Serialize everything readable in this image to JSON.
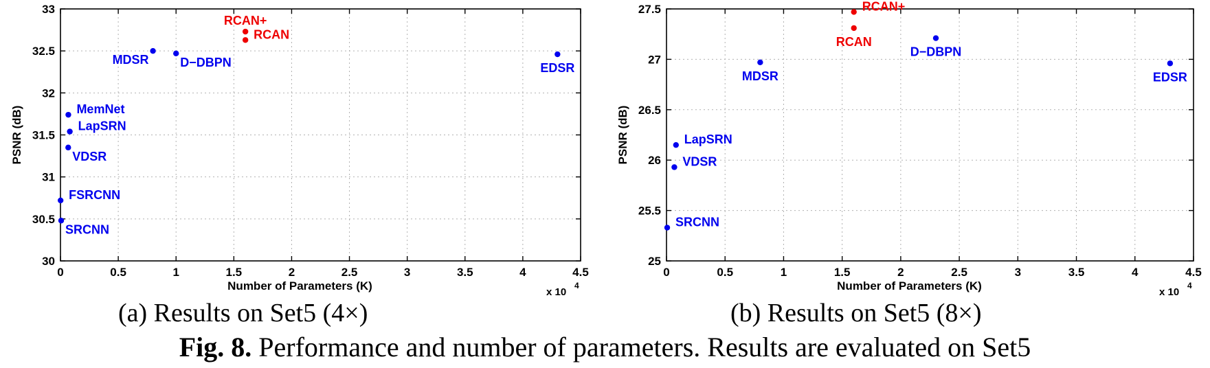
{
  "chart_data": [
    {
      "type": "scatter",
      "title": "",
      "subcaption": "(a) Results on Set5 (4×)",
      "xlabel": "Number of Parameters (K)",
      "ylabel": "PSNR (dB)",
      "x_multiplier_label": "x 10",
      "x_multiplier_exp": "4",
      "xlim": [
        0,
        4.5
      ],
      "ylim": [
        30,
        33
      ],
      "xticks": [
        0,
        0.5,
        1,
        1.5,
        2,
        2.5,
        3,
        3.5,
        4,
        4.5
      ],
      "xtick_labels": [
        "0",
        "0.5",
        "1",
        "1.5",
        "2",
        "2.5",
        "3",
        "3.5",
        "4",
        "4.5"
      ],
      "yticks": [
        30,
        30.5,
        31,
        31.5,
        32,
        32.5,
        33
      ],
      "ytick_labels": [
        "30",
        "30.5",
        "31",
        "31.5",
        "32",
        "32.5",
        "33"
      ],
      "grid": true,
      "points": [
        {
          "name": "SRCNN",
          "x": 0.006,
          "y": 30.48,
          "color": "#0000ee",
          "label_side": "below-right"
        },
        {
          "name": "FSRCNN",
          "x": 0.001,
          "y": 30.72,
          "color": "#0000ee",
          "label_side": "right"
        },
        {
          "name": "VDSR",
          "x": 0.067,
          "y": 31.35,
          "color": "#0000ee",
          "label_side": "below-right"
        },
        {
          "name": "LapSRN",
          "x": 0.081,
          "y": 31.54,
          "color": "#0000ee",
          "label_side": "right"
        },
        {
          "name": "MemNet",
          "x": 0.068,
          "y": 31.74,
          "color": "#0000ee",
          "label_side": "right"
        },
        {
          "name": "MDSR",
          "x": 0.8,
          "y": 32.5,
          "color": "#0000ee",
          "label_side": "below-left"
        },
        {
          "name": "D−DBPN",
          "x": 1.0,
          "y": 32.47,
          "color": "#0000ee",
          "label_side": "below-right"
        },
        {
          "name": "RCAN",
          "x": 1.6,
          "y": 32.63,
          "color": "#ee0000",
          "label_side": "right"
        },
        {
          "name": "RCAN+",
          "x": 1.6,
          "y": 32.73,
          "color": "#ee0000",
          "label_side": "above"
        },
        {
          "name": "EDSR",
          "x": 4.3,
          "y": 32.46,
          "color": "#0000ee",
          "label_side": "below"
        }
      ]
    },
    {
      "type": "scatter",
      "title": "",
      "subcaption": "(b) Results on Set5 (8×)",
      "xlabel": "Number of Parameters (K)",
      "ylabel": "PSNR (dB)",
      "x_multiplier_label": "x 10",
      "x_multiplier_exp": "4",
      "xlim": [
        0,
        4.5
      ],
      "ylim": [
        25,
        27.5
      ],
      "xticks": [
        0,
        0.5,
        1,
        1.5,
        2,
        2.5,
        3,
        3.5,
        4,
        4.5
      ],
      "xtick_labels": [
        "0",
        "0.5",
        "1",
        "1.5",
        "2",
        "2.5",
        "3",
        "3.5",
        "4",
        "4.5"
      ],
      "yticks": [
        25,
        25.5,
        26,
        26.5,
        27,
        27.5
      ],
      "ytick_labels": [
        "25",
        "25.5",
        "26",
        "26.5",
        "27",
        "27.5"
      ],
      "grid": true,
      "points": [
        {
          "name": "SRCNN",
          "x": 0.006,
          "y": 25.33,
          "color": "#0000ee",
          "label_side": "right"
        },
        {
          "name": "VDSR",
          "x": 0.067,
          "y": 25.93,
          "color": "#0000ee",
          "label_side": "right"
        },
        {
          "name": "LapSRN",
          "x": 0.081,
          "y": 26.15,
          "color": "#0000ee",
          "label_side": "right"
        },
        {
          "name": "MDSR",
          "x": 0.8,
          "y": 26.97,
          "color": "#0000ee",
          "label_side": "below"
        },
        {
          "name": "RCAN",
          "x": 1.6,
          "y": 27.31,
          "color": "#ee0000",
          "label_side": "below"
        },
        {
          "name": "RCAN+",
          "x": 1.6,
          "y": 27.47,
          "color": "#ee0000",
          "label_side": "right"
        },
        {
          "name": "D−DBPN",
          "x": 2.3,
          "y": 27.21,
          "color": "#0000ee",
          "label_side": "below"
        },
        {
          "name": "EDSR",
          "x": 4.3,
          "y": 26.96,
          "color": "#0000ee",
          "label_side": "below"
        }
      ]
    }
  ],
  "figure": {
    "caption_label": "Fig. 8.",
    "caption_text": " Performance and number of parameters. Results are evaluated on Set5"
  }
}
